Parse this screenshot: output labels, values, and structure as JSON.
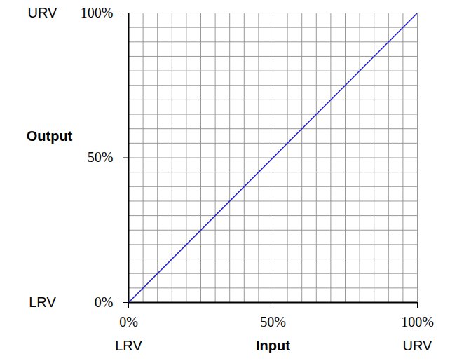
{
  "chart_data": {
    "type": "line",
    "x_label": "Input",
    "y_label": "Output",
    "x": [
      0,
      100
    ],
    "values": [
      0,
      100
    ],
    "color": "#1f1fd1",
    "xlim": [
      0,
      100
    ],
    "ylim": [
      0,
      100
    ],
    "xticks": [
      {
        "value": 0,
        "label": "0%"
      },
      {
        "value": 50,
        "label": "50%"
      },
      {
        "value": 100,
        "label": "100%"
      }
    ],
    "yticks": [
      {
        "value": 0,
        "label": "0%"
      },
      {
        "value": 50,
        "label": "50%"
      },
      {
        "value": 100,
        "label": "100%"
      }
    ],
    "grid": true,
    "annotations": [
      {
        "text": "LRV",
        "axis": "x",
        "value": 0
      },
      {
        "text": "URV",
        "axis": "x",
        "value": 100
      },
      {
        "text": "LRV",
        "axis": "y",
        "value": 0
      },
      {
        "text": "URV",
        "axis": "y",
        "value": 100
      }
    ]
  }
}
